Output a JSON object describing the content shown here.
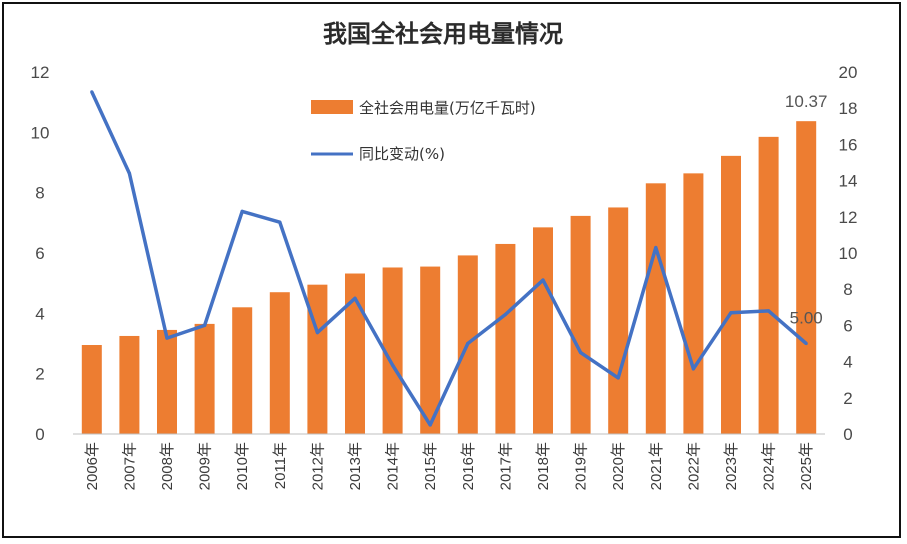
{
  "chart_data": {
    "type": "bar+line",
    "title": "我国全社会用电量情况",
    "categories": [
      "2006年",
      "2007年",
      "2008年",
      "2009年",
      "2010年",
      "2011年",
      "2012年",
      "2013年",
      "2014年",
      "2015年",
      "2016年",
      "2017年",
      "2018年",
      "2019年",
      "2020年",
      "2021年",
      "2022年",
      "2023年",
      "2024年",
      "2025年"
    ],
    "series": [
      {
        "name": "全社会用电量(万亿千瓦时)",
        "type": "bar",
        "axis": "left",
        "color": "#ed7d31",
        "values": [
          2.95,
          3.25,
          3.45,
          3.65,
          4.2,
          4.7,
          4.95,
          5.32,
          5.52,
          5.55,
          5.92,
          6.3,
          6.85,
          7.23,
          7.51,
          8.31,
          8.64,
          9.22,
          9.85,
          10.37
        ]
      },
      {
        "name": "同比变动(%)",
        "type": "line",
        "axis": "right",
        "color": "#4472c4",
        "values": [
          18.9,
          14.4,
          5.3,
          6.0,
          12.3,
          11.7,
          5.6,
          7.5,
          3.8,
          0.5,
          5.0,
          6.6,
          8.5,
          4.5,
          3.1,
          10.3,
          3.6,
          6.7,
          6.8,
          5.0
        ]
      }
    ],
    "left_axis": {
      "min": 0,
      "max": 12,
      "ticks": [
        "0",
        "2",
        "4",
        "6",
        "8",
        "10",
        "12"
      ]
    },
    "right_axis": {
      "min": 0,
      "max": 20,
      "ticks": [
        "0",
        "2",
        "4",
        "6",
        "8",
        "10",
        "12",
        "14",
        "16",
        "18",
        "20"
      ]
    },
    "data_labels": [
      {
        "series": 0,
        "index": 19,
        "text": "10.37"
      },
      {
        "series": 1,
        "index": 19,
        "text": "5.00"
      }
    ],
    "legend_position": "top-center",
    "grid": false
  }
}
